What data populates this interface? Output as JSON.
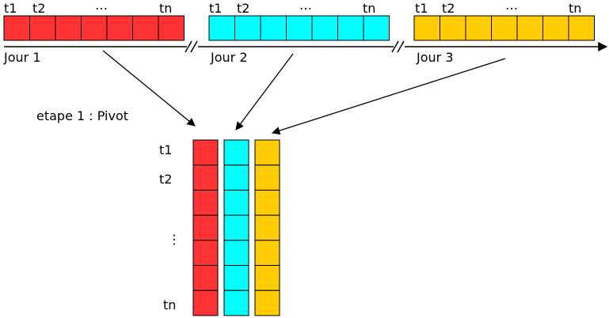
{
  "timeline": {
    "days": [
      {
        "label": "Jour 1",
        "color": "#ff3333",
        "ticks": [
          "t1",
          "t2",
          "…",
          "tn"
        ]
      },
      {
        "label": "Jour 2",
        "color": "#00ffff",
        "ticks": [
          "t1",
          "t2",
          "…",
          "tn"
        ]
      },
      {
        "label": "Jour 3",
        "color": "#ffcc00",
        "ticks": [
          "t1",
          "t2",
          "…",
          "tn"
        ]
      }
    ]
  },
  "pivot": {
    "step_label": "etape 1 : Pivot",
    "row_labels": [
      "t1",
      "t2",
      "⋮",
      "tn"
    ]
  }
}
